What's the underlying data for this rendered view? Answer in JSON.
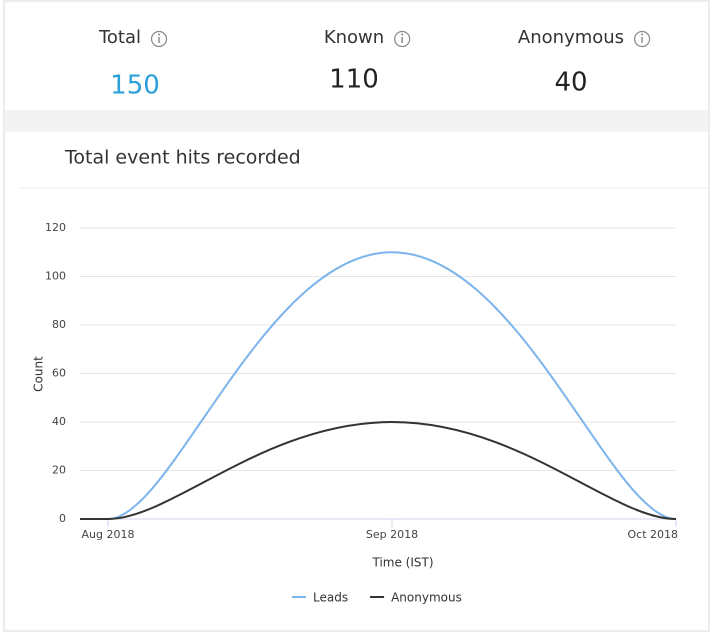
{
  "stats": [
    {
      "label": "Total",
      "value": 150
    },
    {
      "label": "Known",
      "value": 110
    },
    {
      "label": "Anonymous",
      "value": 40
    }
  ],
  "chart_data": {
    "type": "line",
    "title": "Total event hits recorded",
    "x_label": "Time (IST)",
    "y_label": "Count",
    "categories": [
      "Aug 2018",
      "Sep 2018",
      "Oct 2018"
    ],
    "series": [
      {
        "name": "Leads",
        "color": "#7cb5ec",
        "values": [
          0,
          110,
          0
        ]
      },
      {
        "name": "Anonymous",
        "color": "#333333",
        "values": [
          0,
          40,
          0
        ]
      }
    ],
    "ylim": [
      0,
      120
    ],
    "yticks": [
      0,
      20,
      40,
      60,
      80,
      100,
      120
    ],
    "grid": true,
    "legend": "bottom"
  }
}
